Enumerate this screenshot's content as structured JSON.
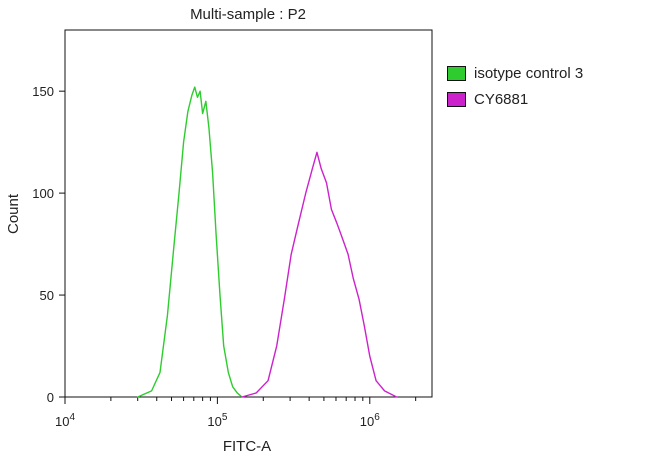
{
  "chart_data": {
    "type": "histogram",
    "title": "Multi-sample : P2",
    "xlabel": "FITC-A",
    "ylabel": "Count",
    "x_scale": "log",
    "xlim": [
      10000,
      2560000
    ],
    "ylim": [
      0,
      180
    ],
    "x_ticks": [
      {
        "value": 10000,
        "base": "10",
        "exp": "4"
      },
      {
        "value": 100000,
        "base": "10",
        "exp": "5"
      },
      {
        "value": 1000000,
        "base": "10",
        "exp": "6"
      }
    ],
    "y_ticks": [
      0,
      50,
      100,
      150
    ],
    "grid": false,
    "legend_position": "outside-right",
    "series": [
      {
        "name": "isotype control 3",
        "color": "#2ecc2e",
        "x": [
          30000,
          37000,
          42000,
          47000,
          52000,
          56000,
          60000,
          64000,
          68000,
          71000,
          74000,
          77000,
          80000,
          84000,
          88000,
          93000,
          98000,
          104000,
          110000,
          118000,
          126000,
          135000,
          145000
        ],
        "y": [
          0,
          3,
          12,
          40,
          75,
          100,
          125,
          140,
          148,
          152,
          147,
          150,
          139,
          145,
          132,
          110,
          80,
          50,
          25,
          12,
          5,
          2,
          0
        ]
      },
      {
        "name": "CY6881",
        "color": "#cc22cc",
        "x": [
          145000,
          180000,
          215000,
          245000,
          275000,
          305000,
          340000,
          380000,
          420000,
          450000,
          480000,
          520000,
          560000,
          610000,
          660000,
          720000,
          780000,
          850000,
          920000,
          1000000,
          1100000,
          1250000,
          1500000
        ],
        "y": [
          0,
          2,
          8,
          25,
          48,
          70,
          85,
          100,
          112,
          120,
          112,
          105,
          92,
          85,
          78,
          70,
          58,
          48,
          35,
          20,
          8,
          3,
          0
        ]
      }
    ]
  }
}
